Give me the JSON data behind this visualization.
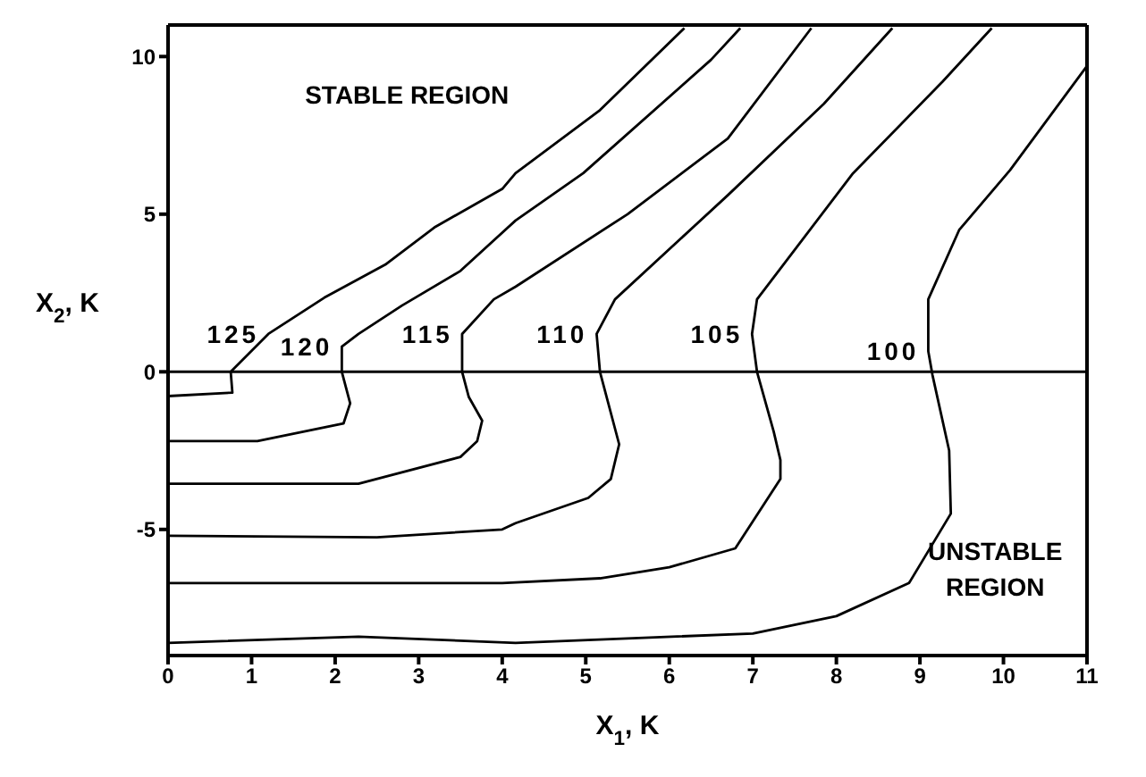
{
  "chart_data": {
    "type": "line",
    "xlabel": "X$_{1}$, K",
    "ylabel": "X$_{2}$, K",
    "xlim": [
      0,
      11
    ],
    "xticks": [
      0,
      1,
      2,
      3,
      4,
      5,
      6,
      7,
      8,
      9,
      10,
      11
    ],
    "ylim": [
      -9,
      11
    ],
    "yticks": [
      -5,
      0,
      5,
      10
    ],
    "grid": false,
    "legend": false,
    "marker": "none",
    "line_style": "solid",
    "ref_lines": [
      {
        "axis": "y",
        "value": 0,
        "color": "#000000"
      }
    ],
    "annotations": [
      "STABLE REGION",
      "UNSTABLE REGION"
    ],
    "series": [
      {
        "name": "125",
        "color": "#000000",
        "x": [
          0,
          0.77,
          0.75,
          1.2,
          1.87,
          2.6,
          3.2,
          4.0,
          4.16,
          5.17,
          6.18
        ],
        "values": [
          -0.77,
          -0.66,
          0,
          1.2,
          2.35,
          3.4,
          4.6,
          5.8,
          6.3,
          8.3,
          10.9
        ]
      },
      {
        "name": "120",
        "color": "#000000",
        "x": [
          0,
          1.07,
          2.1,
          2.18,
          2.08,
          2.08,
          2.28,
          2.8,
          3.5,
          4.16,
          4.97,
          6.5,
          6.85
        ],
        "values": [
          -2.2,
          -2.2,
          -1.64,
          -1.0,
          0,
          0.8,
          1.2,
          2.1,
          3.2,
          4.8,
          6.3,
          9.9,
          10.9
        ]
      },
      {
        "name": "115",
        "color": "#000000",
        "x": [
          0,
          2.28,
          3.5,
          3.7,
          3.76,
          3.6,
          3.52,
          3.52,
          3.9,
          4.16,
          5.5,
          6.7,
          7.7
        ],
        "values": [
          -3.55,
          -3.55,
          -2.7,
          -2.2,
          -1.55,
          -0.8,
          0,
          1.2,
          2.3,
          2.7,
          5.0,
          7.4,
          10.9
        ]
      },
      {
        "name": "110",
        "color": "#000000",
        "x": [
          0,
          2.5,
          4.0,
          4.16,
          5.03,
          5.3,
          5.4,
          5.17,
          5.13,
          5.35,
          6.7,
          7.85,
          8.67
        ],
        "values": [
          -5.2,
          -5.25,
          -5.0,
          -4.8,
          -4.0,
          -3.4,
          -2.3,
          0,
          1.2,
          2.3,
          5.6,
          8.5,
          10.9
        ]
      },
      {
        "name": "105",
        "color": "#000000",
        "x": [
          0,
          4.0,
          5.17,
          6.0,
          6.79,
          7.33,
          7.33,
          7.25,
          7.05,
          6.99,
          7.05,
          8.2,
          9.27,
          9.86
        ],
        "values": [
          -6.7,
          -6.7,
          -6.55,
          -6.2,
          -5.6,
          -3.4,
          -2.8,
          -1.9,
          0,
          1.2,
          2.3,
          6.3,
          9.2,
          10.9
        ]
      },
      {
        "name": "100",
        "color": "#000000",
        "x": [
          0,
          2.28,
          4.16,
          7.0,
          8.0,
          8.87,
          9.37,
          9.35,
          9.15,
          9.1,
          9.1,
          9.47,
          10.08,
          11.0
        ],
        "values": [
          -8.6,
          -8.4,
          -8.6,
          -8.3,
          -7.75,
          -6.7,
          -4.5,
          -2.5,
          -0.1,
          0.65,
          2.3,
          4.5,
          6.4,
          9.7
        ]
      }
    ]
  }
}
